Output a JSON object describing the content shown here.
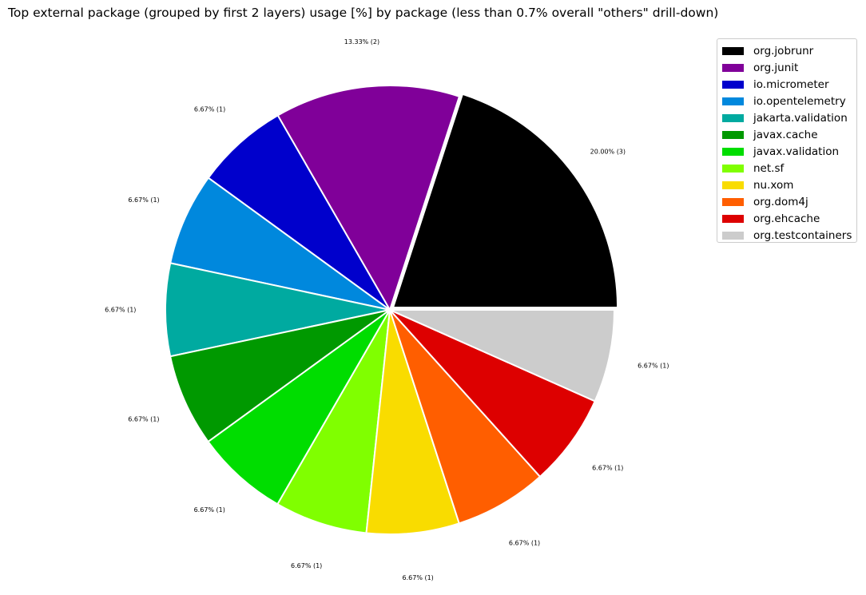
{
  "chart_data": {
    "type": "pie",
    "title": "Top external package (grouped by first 2 layers) usage [%] by package (less than 0.7% overall \"others\" drill-down)",
    "legend_position": "top-right",
    "slices": [
      {
        "name": "org.jobrunr",
        "value": 20.0,
        "count": 3,
        "label": "20.00% (3)",
        "color": "#000000",
        "explode": true
      },
      {
        "name": "org.junit",
        "value": 13.33,
        "count": 2,
        "label": "13.33% (2)",
        "color": "#800099"
      },
      {
        "name": "io.micrometer",
        "value": 6.67,
        "count": 1,
        "label": "6.67% (1)",
        "color": "#0000cc"
      },
      {
        "name": "io.opentelemetry",
        "value": 6.67,
        "count": 1,
        "label": "6.67% (1)",
        "color": "#0088dd"
      },
      {
        "name": "jakarta.validation",
        "value": 6.67,
        "count": 1,
        "label": "6.67% (1)",
        "color": "#00aaa0"
      },
      {
        "name": "javax.cache",
        "value": 6.67,
        "count": 1,
        "label": "6.67% (1)",
        "color": "#009900"
      },
      {
        "name": "javax.validation",
        "value": 6.67,
        "count": 1,
        "label": "6.67% (1)",
        "color": "#00dd00"
      },
      {
        "name": "net.sf",
        "value": 6.67,
        "count": 1,
        "label": "6.67% (1)",
        "color": "#80ff00"
      },
      {
        "name": "nu.xom",
        "value": 6.67,
        "count": 1,
        "label": "6.67% (1)",
        "color": "#f9dc00"
      },
      {
        "name": "org.dom4j",
        "value": 6.67,
        "count": 1,
        "label": "6.67% (1)",
        "color": "#ff5e00"
      },
      {
        "name": "org.ehcache",
        "value": 6.67,
        "count": 1,
        "label": "6.67% (1)",
        "color": "#dd0000"
      },
      {
        "name": "org.testcontainers",
        "value": 6.67,
        "count": 1,
        "label": "6.67% (1)",
        "color": "#cccccc"
      }
    ]
  }
}
